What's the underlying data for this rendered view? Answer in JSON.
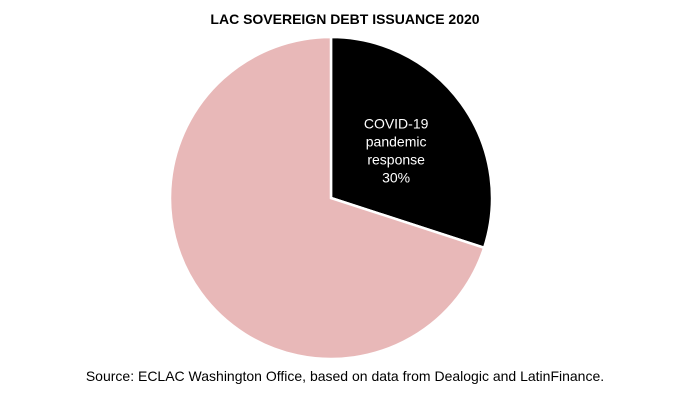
{
  "chart_data": {
    "type": "pie",
    "title": "LAC SOVEREIGN DEBT ISSUANCE 2020",
    "slices": [
      {
        "label_lines": [
          "COVID-19",
          "pandemic",
          "response",
          "30%"
        ],
        "value": 30,
        "color": "#000000",
        "label_color": "#ffffff"
      },
      {
        "label_lines": [],
        "value": 70,
        "color": "#e8b8b8",
        "label_color": "#000000"
      }
    ],
    "start_angle": "12 o'clock",
    "direction": "clockwise",
    "slice_border_color": "#ffffff",
    "legend": "none",
    "source": "Source: ECLAC Washington Office, based on data from Dealogic and LatinFinance."
  }
}
